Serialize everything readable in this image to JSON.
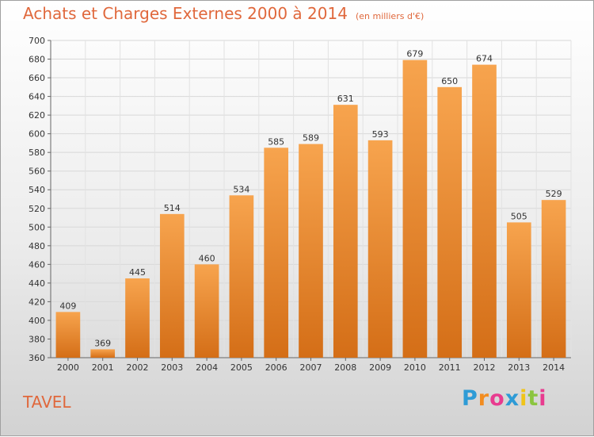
{
  "title": "Achats et Charges Externes 2000 à 2014",
  "title_unit": "(en milliers d'€)",
  "commune": "TAVEL",
  "brand": {
    "letters": [
      "P",
      "r",
      "o",
      "x",
      "i",
      "t",
      "i"
    ],
    "colors": [
      "#2e9bd6",
      "#f28c1f",
      "#e83b8f",
      "#2e9bd6",
      "#f0c419",
      "#8bc53f",
      "#e83b8f"
    ]
  },
  "colors": {
    "accent": "#e0683c",
    "bar_top": "#f7a44e",
    "bar_bottom": "#d46e17"
  },
  "chart_data": {
    "type": "bar",
    "categories": [
      "2000",
      "2001",
      "2002",
      "2003",
      "2004",
      "2005",
      "2006",
      "2007",
      "2008",
      "2009",
      "2010",
      "2011",
      "2012",
      "2013",
      "2014"
    ],
    "values": [
      409,
      369,
      445,
      514,
      460,
      534,
      585,
      589,
      631,
      593,
      679,
      650,
      674,
      505,
      529
    ],
    "title": "Achats et Charges Externes 2000 à 2014",
    "ylim": [
      360,
      700
    ],
    "yticks": [
      360,
      380,
      400,
      420,
      440,
      460,
      480,
      500,
      520,
      540,
      560,
      580,
      600,
      620,
      640,
      660,
      680,
      700
    ],
    "grid": true,
    "legend": "none"
  }
}
